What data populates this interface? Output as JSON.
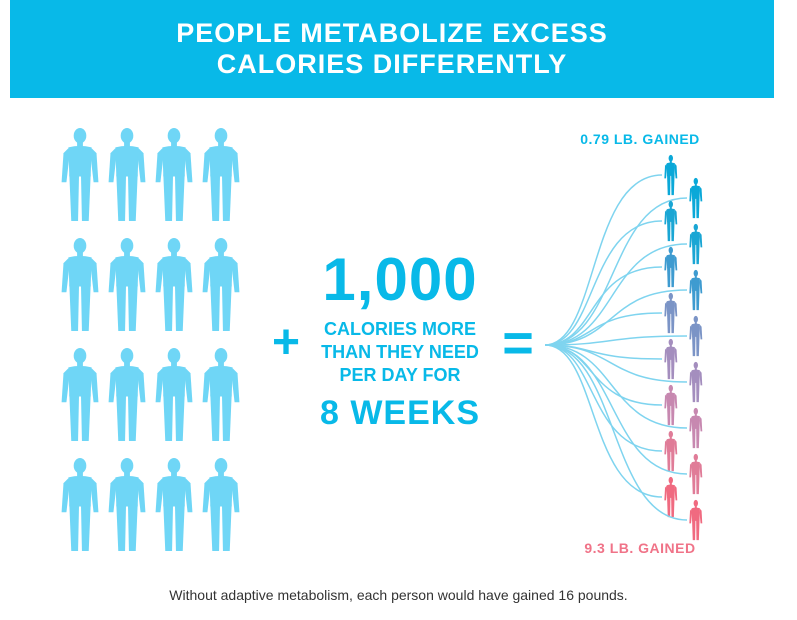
{
  "header": {
    "title": "PEOPLE METABOLIZE EXCESS\nCALORIES DIFFERENTLY"
  },
  "people_group": {
    "rows": 4,
    "columns": 4,
    "icon": "person-icon",
    "color": "#6fd6f6"
  },
  "operators": {
    "plus": "+",
    "equals": "="
  },
  "intervention": {
    "amount": "1,000",
    "description": "CALORIES MORE\nTHAN THEY NEED\nPER DAY FOR",
    "duration": "8 WEEKS"
  },
  "outcomes": {
    "top_label": "0.79 LB. GAINED",
    "bottom_label": "9.3 LB. GAINED",
    "person_count": 16,
    "icon": "person-icon",
    "gradient_colors": [
      "#0aa8d8",
      "#1aa6d4",
      "#3e9bd0",
      "#7b94c6",
      "#a48ebe",
      "#c788b0",
      "#e07c98",
      "#f06a80"
    ]
  },
  "colors": {
    "accent": "#08b9e8",
    "light_figure": "#6fd6f6",
    "connector": "#7fd4ef",
    "pink": "#f07388"
  },
  "footnote": "Without adaptive metabolism, each person would have gained 16 pounds."
}
